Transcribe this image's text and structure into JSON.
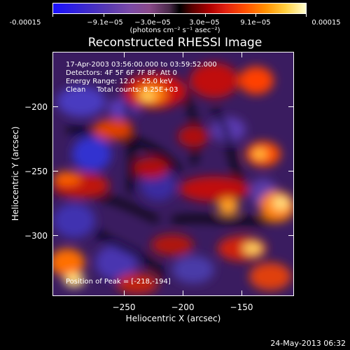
{
  "colorbar": {
    "ticks": [
      "-0.00015",
      "−9.1e−05",
      "−3.0e−05",
      "3.0e−05",
      "9.1e−05",
      "0.00015"
    ],
    "units": "(photons cm⁻² s⁻¹ asec⁻²)"
  },
  "title": "Reconstructed RHESSI Image",
  "info": {
    "time_range": "17-Apr-2003 03:56:00.000 to 03:59:52.000",
    "detectors": "Detectors: 4F 5F 6F 7F 8F, Att 0",
    "energy": "Energy Range: 12.0 - 25.0 keV",
    "clean": "Clean     Total counts: 8.25E+03",
    "peak": "Position of Peak = [-218,-194]"
  },
  "axes": {
    "xlabel": "Heliocentric X (arcsec)",
    "ylabel": "Heliocentric Y (arcsec)",
    "xticks": [
      "−250",
      "−200",
      "−150"
    ],
    "yticks": [
      "−200",
      "−250",
      "−300"
    ]
  },
  "timestamp": "24-May-2013 06:32"
}
